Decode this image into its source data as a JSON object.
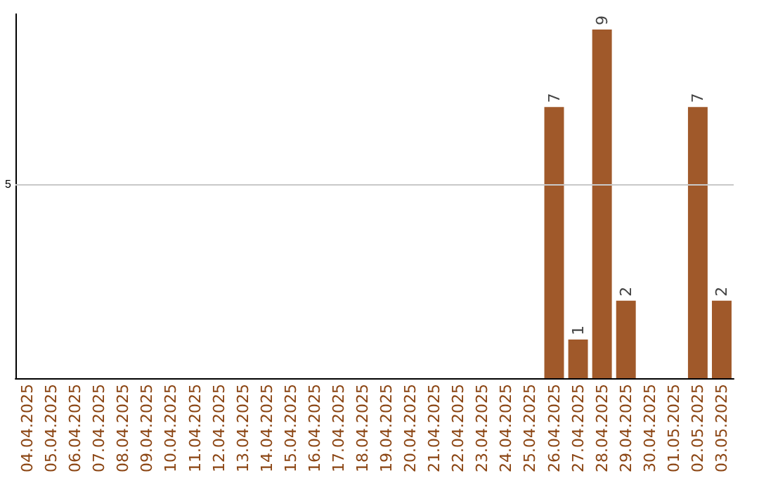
{
  "chart_data": {
    "type": "bar",
    "categories": [
      "04.04.2025",
      "05.04.2025",
      "06.04.2025",
      "07.04.2025",
      "08.04.2025",
      "09.04.2025",
      "10.04.2025",
      "11.04.2025",
      "12.04.2025",
      "13.04.2025",
      "14.04.2025",
      "15.04.2025",
      "16.04.2025",
      "17.04.2025",
      "18.04.2025",
      "19.04.2025",
      "20.04.2025",
      "21.04.2025",
      "22.04.2025",
      "23.04.2025",
      "24.04.2025",
      "25.04.2025",
      "26.04.2025",
      "27.04.2025",
      "28.04.2025",
      "29.04.2025",
      "30.04.2025",
      "01.05.2025",
      "02.05.2025",
      "03.05.2025"
    ],
    "values": [
      null,
      null,
      null,
      null,
      null,
      null,
      null,
      null,
      null,
      null,
      null,
      null,
      null,
      null,
      null,
      null,
      null,
      null,
      null,
      null,
      null,
      null,
      7,
      1,
      9,
      2,
      null,
      null,
      7,
      2
    ],
    "color": "#a0592a",
    "ylim": [
      0,
      9.4
    ],
    "data_labels": true,
    "ref_lines": [
      {
        "axis": "y",
        "value": 5,
        "label": "5",
        "color": "#c8c8c8"
      }
    ]
  }
}
